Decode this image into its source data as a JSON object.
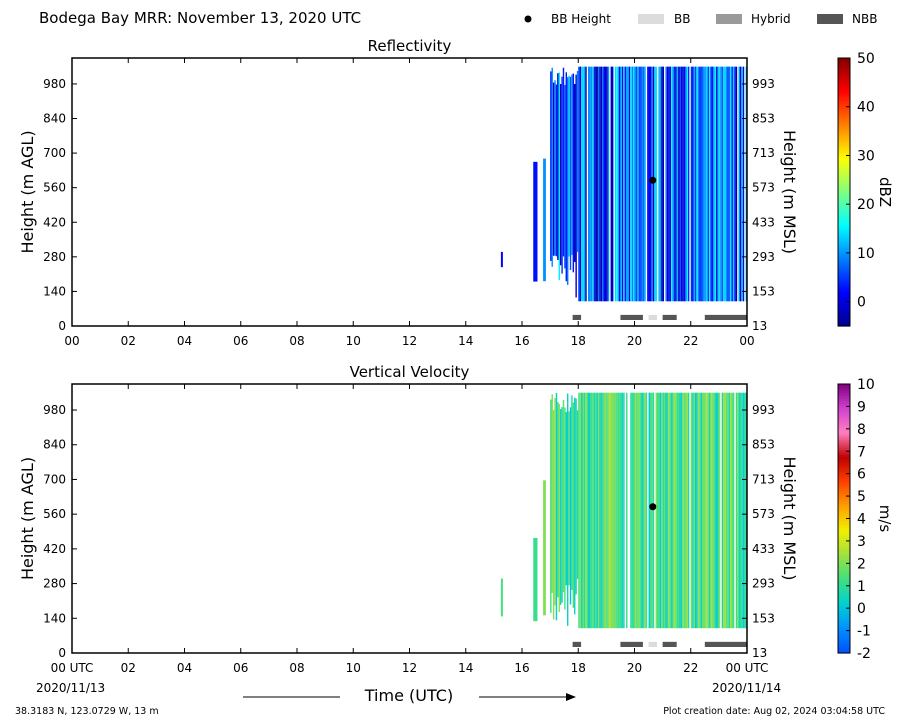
{
  "header": {
    "title": "Bodega Bay MRR:  November 13, 2020 UTC",
    "legend": [
      {
        "label": "BB Height",
        "marker": "dot",
        "color": "#000000"
      },
      {
        "label": "BB",
        "marker": "swatch",
        "color": "#dcdcdc"
      },
      {
        "label": "Hybrid",
        "marker": "swatch",
        "color": "#9a9a9a"
      },
      {
        "label": "NBB",
        "marker": "swatch",
        "color": "#555555"
      }
    ]
  },
  "footer": {
    "location": "38.3183 N, 123.0729 W, 13 m",
    "creation": "Plot creation date: Aug 02, 2024 03:04:58 UTC",
    "xlabel": "Time (UTC)",
    "start_date": "2020/11/13",
    "end_date": "2020/11/14"
  },
  "colors": {
    "bb": "#dcdcdc",
    "hybrid": "#9a9a9a",
    "nbb": "#555555"
  },
  "chart_data": [
    {
      "type": "heatmap",
      "title": "Reflectivity",
      "ylabel": "Height (m AGL)",
      "y2label": "Height (m MSL)",
      "cbar_label": "dBZ",
      "x_ticks": [
        "00",
        "02",
        "04",
        "06",
        "08",
        "10",
        "12",
        "14",
        "16",
        "18",
        "20",
        "22",
        "00"
      ],
      "xlim_hours": [
        0,
        24
      ],
      "y_ticks_agl": [
        0,
        140,
        280,
        420,
        560,
        700,
        840,
        980
      ],
      "y_ticks_msl": [
        13,
        153,
        293,
        433,
        573,
        713,
        853,
        993
      ],
      "ylim_m": [
        0,
        1085
      ],
      "data_top_m": 1050,
      "data_bottom_m": 100,
      "cbar_range": [
        -5,
        50
      ],
      "cbar_ticks": [
        0,
        10,
        20,
        30,
        40,
        50
      ],
      "cbar_colors": [
        "#00008f",
        "#0000ff",
        "#0080ff",
        "#00ffff",
        "#80ff80",
        "#ffff00",
        "#ff8000",
        "#ff0000",
        "#800000"
      ],
      "value_range": [
        -4,
        16
      ],
      "echo_periods_hours": [
        [
          15.25,
          15.32
        ],
        [
          16.4,
          16.55
        ],
        [
          16.75,
          16.85
        ],
        [
          17.0,
          24.0
        ]
      ],
      "bright_band_height_m": [
        {
          "time_hours": 20.65,
          "height_m": 590
        }
      ],
      "bb_classification": [
        {
          "start": 17.8,
          "end": 18.1,
          "type": "nbb"
        },
        {
          "start": 19.5,
          "end": 20.3,
          "type": "nbb"
        },
        {
          "start": 20.5,
          "end": 20.8,
          "type": "bb"
        },
        {
          "start": 21.0,
          "end": 21.5,
          "type": "nbb"
        },
        {
          "start": 22.5,
          "end": 24.0,
          "type": "nbb"
        }
      ]
    },
    {
      "type": "heatmap",
      "title": "Vertical Velocity",
      "ylabel": "Height (m AGL)",
      "y2label": "Height (m MSL)",
      "cbar_label": "m/s",
      "x_ticks": [
        "00 UTC",
        "02",
        "04",
        "06",
        "08",
        "10",
        "12",
        "14",
        "16",
        "18",
        "20",
        "22",
        "00 UTC"
      ],
      "xlim_hours": [
        0,
        24
      ],
      "y_ticks_agl": [
        0,
        140,
        280,
        420,
        560,
        700,
        840,
        980
      ],
      "y_ticks_msl": [
        13,
        153,
        293,
        433,
        573,
        713,
        853,
        993
      ],
      "ylim_m": [
        0,
        1085
      ],
      "data_top_m": 1050,
      "data_bottom_m": 100,
      "cbar_range": [
        -2,
        10
      ],
      "cbar_ticks": [
        -2,
        -1,
        0,
        1,
        2,
        3,
        4,
        5,
        6,
        7,
        8,
        9,
        10
      ],
      "cbar_colors": [
        "#0050ff",
        "#0090ff",
        "#00d0d0",
        "#40e080",
        "#a0e040",
        "#f0f000",
        "#ffa000",
        "#ff4000",
        "#c00000",
        "#ff80c0",
        "#d040d0",
        "#800080"
      ],
      "value_range": [
        0,
        2.4
      ],
      "echo_periods_hours": [
        [
          15.25,
          15.32
        ],
        [
          16.4,
          16.55
        ],
        [
          16.75,
          16.85
        ],
        [
          17.0,
          24.0
        ]
      ],
      "bright_band_height_m": [
        {
          "time_hours": 20.65,
          "height_m": 590
        }
      ],
      "bb_classification": [
        {
          "start": 17.8,
          "end": 18.1,
          "type": "nbb"
        },
        {
          "start": 19.5,
          "end": 20.3,
          "type": "nbb"
        },
        {
          "start": 20.5,
          "end": 20.8,
          "type": "bb"
        },
        {
          "start": 21.0,
          "end": 21.5,
          "type": "nbb"
        },
        {
          "start": 22.5,
          "end": 24.0,
          "type": "nbb"
        }
      ]
    }
  ]
}
